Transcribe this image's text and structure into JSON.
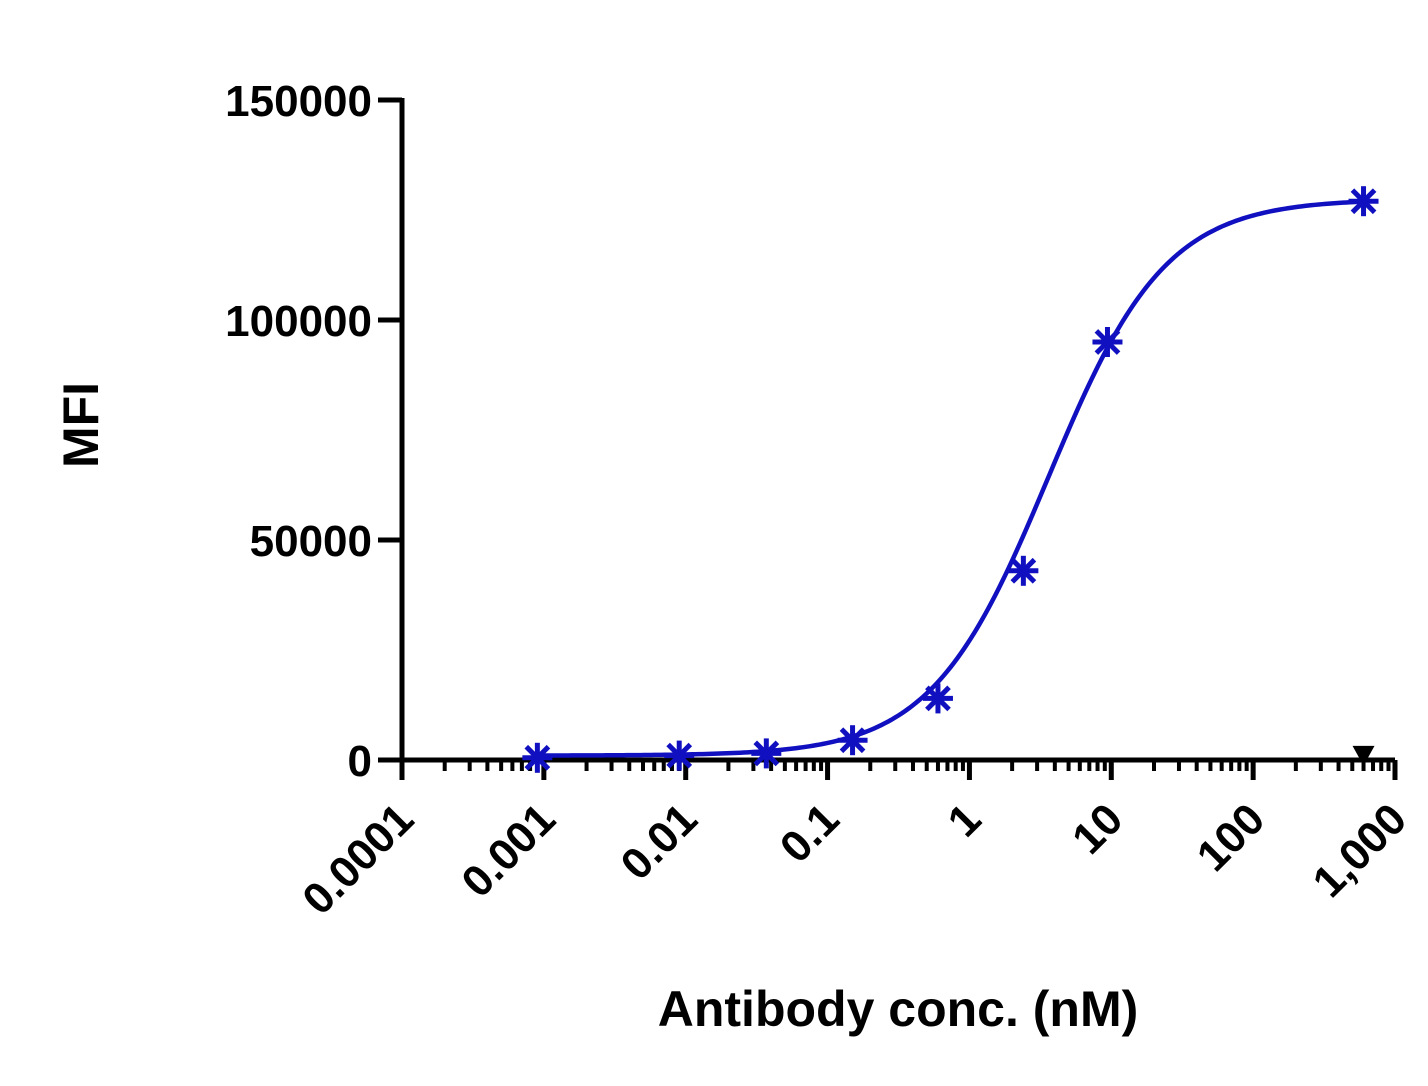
{
  "chart_data": {
    "type": "scatter",
    "xlabel": "Antibody conc. (nM)",
    "ylabel": "MFI",
    "x_scale": "log",
    "xlim": [
      0.0001,
      1000
    ],
    "ylim": [
      0,
      150000
    ],
    "x_tick_labels": [
      "0.0001",
      "0.001",
      "0.01",
      "0.1",
      "1",
      "10",
      "100",
      "1,000"
    ],
    "y_tick_labels": [
      "0",
      "50000",
      "100000",
      "150000"
    ],
    "y_ticks": [
      0,
      50000,
      100000,
      150000
    ],
    "series": [
      {
        "marker": "asterisk",
        "color": "#1010c0",
        "fit": "sigmoidal",
        "x": [
          0.0009,
          0.009,
          0.037,
          0.15,
          0.6,
          2.4,
          9.4,
          600
        ],
        "y": [
          500,
          1000,
          1500,
          4500,
          14000,
          43000,
          95000,
          127000
        ]
      },
      {
        "marker": "triangle-down",
        "color": "#000000",
        "x": [
          600
        ],
        "y": [
          1200
        ]
      }
    ],
    "grid": false,
    "legend": "none"
  }
}
